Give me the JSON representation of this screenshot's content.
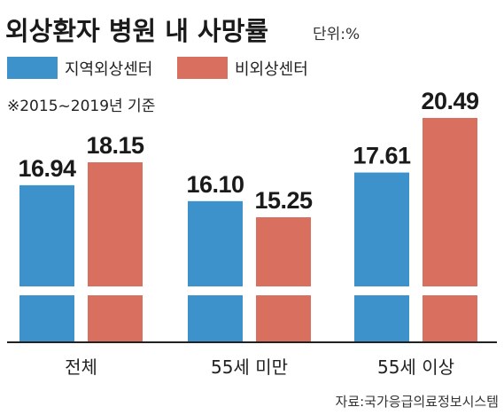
{
  "header": {
    "title": "외상환자 병원 내 사망률",
    "unit": "단위:%"
  },
  "note": "※2015~2019년 기준",
  "source": "자료:국가응급의료정보시스템",
  "colors": {
    "regional": "#3e92cc",
    "non_regional": "#d9705f",
    "axis": "#222222"
  },
  "chart_data": {
    "type": "bar",
    "categories": [
      "전체",
      "55세 미만",
      "55세 이상"
    ],
    "series": [
      {
        "name": "지역외상센터",
        "values": [
          16.94,
          16.1,
          17.61
        ]
      },
      {
        "name": "비외상센터",
        "values": [
          18.15,
          15.25,
          20.49
        ]
      }
    ],
    "value_labels": [
      [
        "16.94",
        "16.10",
        "17.61"
      ],
      [
        "18.15",
        "15.25",
        "20.49"
      ]
    ],
    "axis_break": true,
    "legend_position": "top-left",
    "grid": false
  }
}
